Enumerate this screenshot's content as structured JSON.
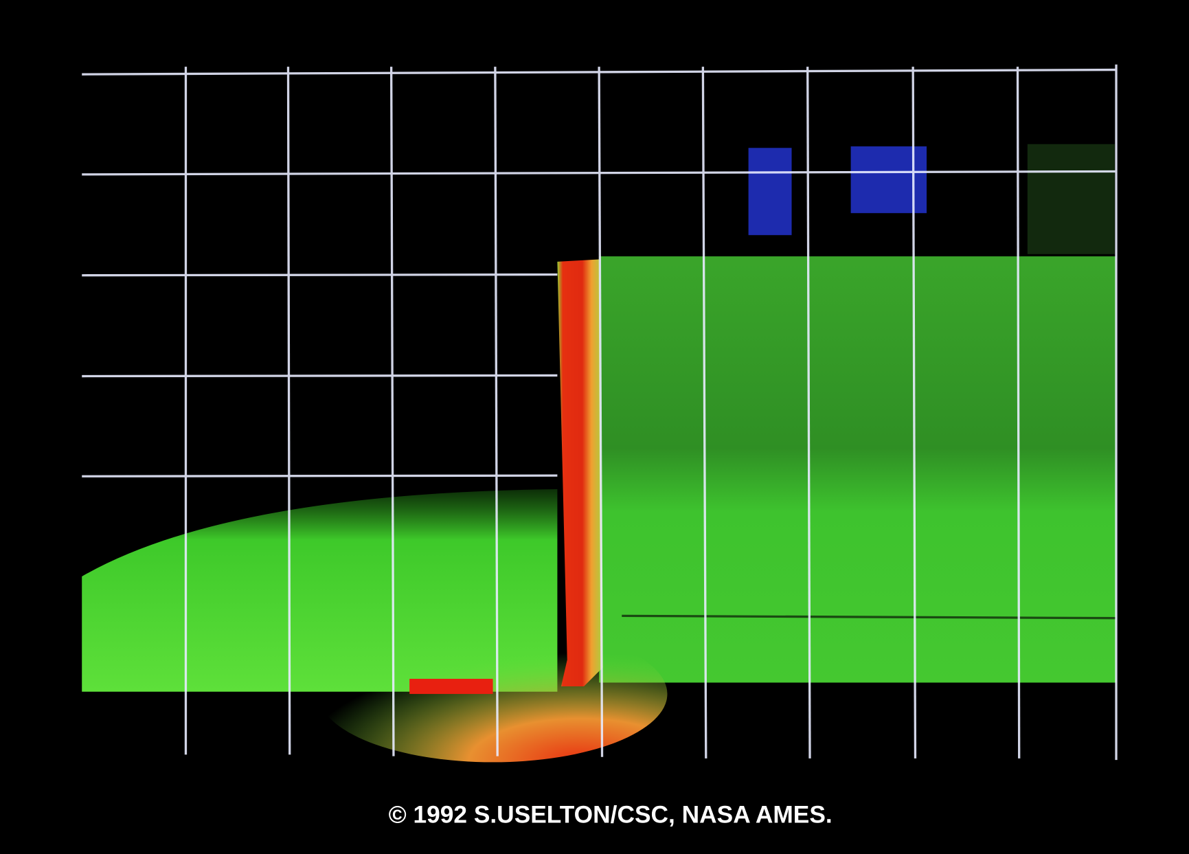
{
  "caption": "© 1992 S.USELTON/CSC, NASA AMES."
}
